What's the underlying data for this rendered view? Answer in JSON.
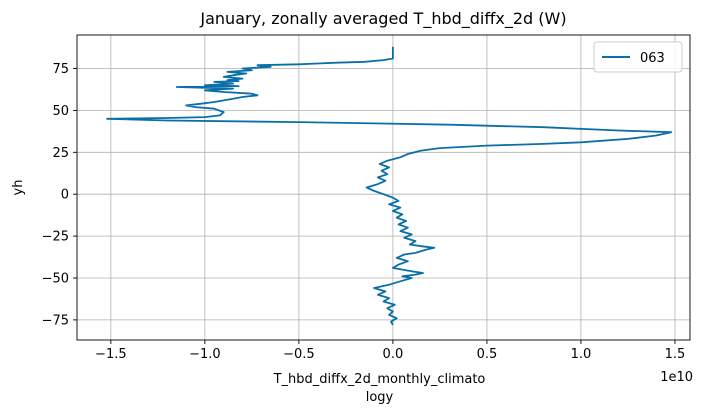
{
  "chart_data": {
    "type": "line",
    "title": "January, zonally averaged T_hbd_diffx_2d (W)",
    "xlabel": "T_hbd_diffx_2d_monthly_climato",
    "xlabel2": "logy",
    "ylabel": "yh",
    "x_offset_text": "1e10",
    "xlim": [
      -1.68,
      1.58
    ],
    "ylim": [
      -87,
      95
    ],
    "x_ticks": [
      -1.5,
      -1.0,
      -0.5,
      0.0,
      0.5,
      1.0,
      1.5
    ],
    "x_tick_labels": [
      "−1.5",
      "−1.0",
      "−0.5",
      "0.0",
      "0.5",
      "1.0",
      "1.5"
    ],
    "y_ticks": [
      -75,
      -50,
      -25,
      0,
      25,
      50,
      75
    ],
    "y_tick_labels": [
      "−75",
      "−50",
      "−25",
      "0",
      "25",
      "50",
      "75"
    ],
    "grid": true,
    "legend_position": "top-right",
    "color": "#0a6fa8",
    "series": [
      {
        "name": "063",
        "points": [
          [
            0.0,
            -78
          ],
          [
            -0.01,
            -76
          ],
          [
            0.02,
            -74
          ],
          [
            -0.02,
            -72
          ],
          [
            0.0,
            -70
          ],
          [
            -0.03,
            -68
          ],
          [
            0.01,
            -66
          ],
          [
            -0.05,
            -64
          ],
          [
            -0.02,
            -62
          ],
          [
            -0.08,
            -60
          ],
          [
            -0.04,
            -58
          ],
          [
            -0.1,
            -56
          ],
          [
            -0.02,
            -54
          ],
          [
            0.04,
            -52
          ],
          [
            0.1,
            -50
          ],
          [
            0.05,
            -49
          ],
          [
            0.12,
            -48
          ],
          [
            0.16,
            -47
          ],
          [
            0.1,
            -46
          ],
          [
            0.05,
            -45
          ],
          [
            0.0,
            -44
          ],
          [
            0.03,
            -42
          ],
          [
            0.08,
            -40
          ],
          [
            0.02,
            -38
          ],
          [
            0.06,
            -36
          ],
          [
            0.12,
            -35
          ],
          [
            0.18,
            -33
          ],
          [
            0.22,
            -32
          ],
          [
            0.15,
            -31
          ],
          [
            0.09,
            -30
          ],
          [
            0.12,
            -28
          ],
          [
            0.06,
            -26
          ],
          [
            0.1,
            -24
          ],
          [
            0.04,
            -22
          ],
          [
            0.08,
            -20
          ],
          [
            0.03,
            -18
          ],
          [
            0.07,
            -16
          ],
          [
            0.02,
            -14
          ],
          [
            0.05,
            -12
          ],
          [
            0.0,
            -10
          ],
          [
            0.04,
            -8
          ],
          [
            -0.02,
            -6
          ],
          [
            0.03,
            -4
          ],
          [
            0.0,
            -2
          ],
          [
            -0.05,
            0
          ],
          [
            -0.1,
            2
          ],
          [
            -0.14,
            4
          ],
          [
            -0.08,
            6
          ],
          [
            -0.04,
            8
          ],
          [
            -0.08,
            10
          ],
          [
            -0.03,
            12
          ],
          [
            -0.06,
            14
          ],
          [
            -0.02,
            16
          ],
          [
            -0.07,
            18
          ],
          [
            -0.03,
            20
          ],
          [
            0.04,
            22
          ],
          [
            0.08,
            24
          ],
          [
            0.15,
            26
          ],
          [
            0.25,
            27.5
          ],
          [
            0.5,
            29
          ],
          [
            0.8,
            30
          ],
          [
            1.0,
            31
          ],
          [
            1.25,
            33
          ],
          [
            1.4,
            35
          ],
          [
            1.48,
            37
          ],
          [
            1.2,
            38
          ],
          [
            0.8,
            40
          ],
          [
            0.3,
            41.5
          ],
          [
            -0.5,
            43
          ],
          [
            -1.2,
            44
          ],
          [
            -1.52,
            45
          ],
          [
            -1.2,
            45.5
          ],
          [
            -1.0,
            46
          ],
          [
            -0.92,
            47
          ],
          [
            -0.9,
            49
          ],
          [
            -0.95,
            51
          ],
          [
            -1.05,
            52
          ],
          [
            -1.1,
            53
          ],
          [
            -1.02,
            54
          ],
          [
            -0.95,
            55
          ],
          [
            -0.85,
            57
          ],
          [
            -0.8,
            58
          ],
          [
            -0.72,
            59
          ],
          [
            -0.75,
            60
          ],
          [
            -0.9,
            61
          ],
          [
            -1.0,
            62
          ],
          [
            -0.85,
            63
          ],
          [
            -1.15,
            64
          ],
          [
            -0.82,
            64.5
          ],
          [
            -1.0,
            65
          ],
          [
            -0.85,
            66
          ],
          [
            -0.95,
            67
          ],
          [
            -0.82,
            67.5
          ],
          [
            -0.88,
            68
          ],
          [
            -0.8,
            69
          ],
          [
            -0.9,
            70
          ],
          [
            -0.85,
            71
          ],
          [
            -0.78,
            72
          ],
          [
            -0.88,
            73
          ],
          [
            -0.75,
            74
          ],
          [
            -0.8,
            75
          ],
          [
            -0.65,
            76
          ],
          [
            -0.72,
            77
          ],
          [
            -0.5,
            77.5
          ],
          [
            -0.4,
            78
          ],
          [
            -0.3,
            78.5
          ],
          [
            -0.15,
            79
          ],
          [
            -0.05,
            80
          ],
          [
            0.0,
            81
          ],
          [
            0.0,
            84
          ],
          [
            0.0,
            88
          ]
        ]
      }
    ]
  }
}
